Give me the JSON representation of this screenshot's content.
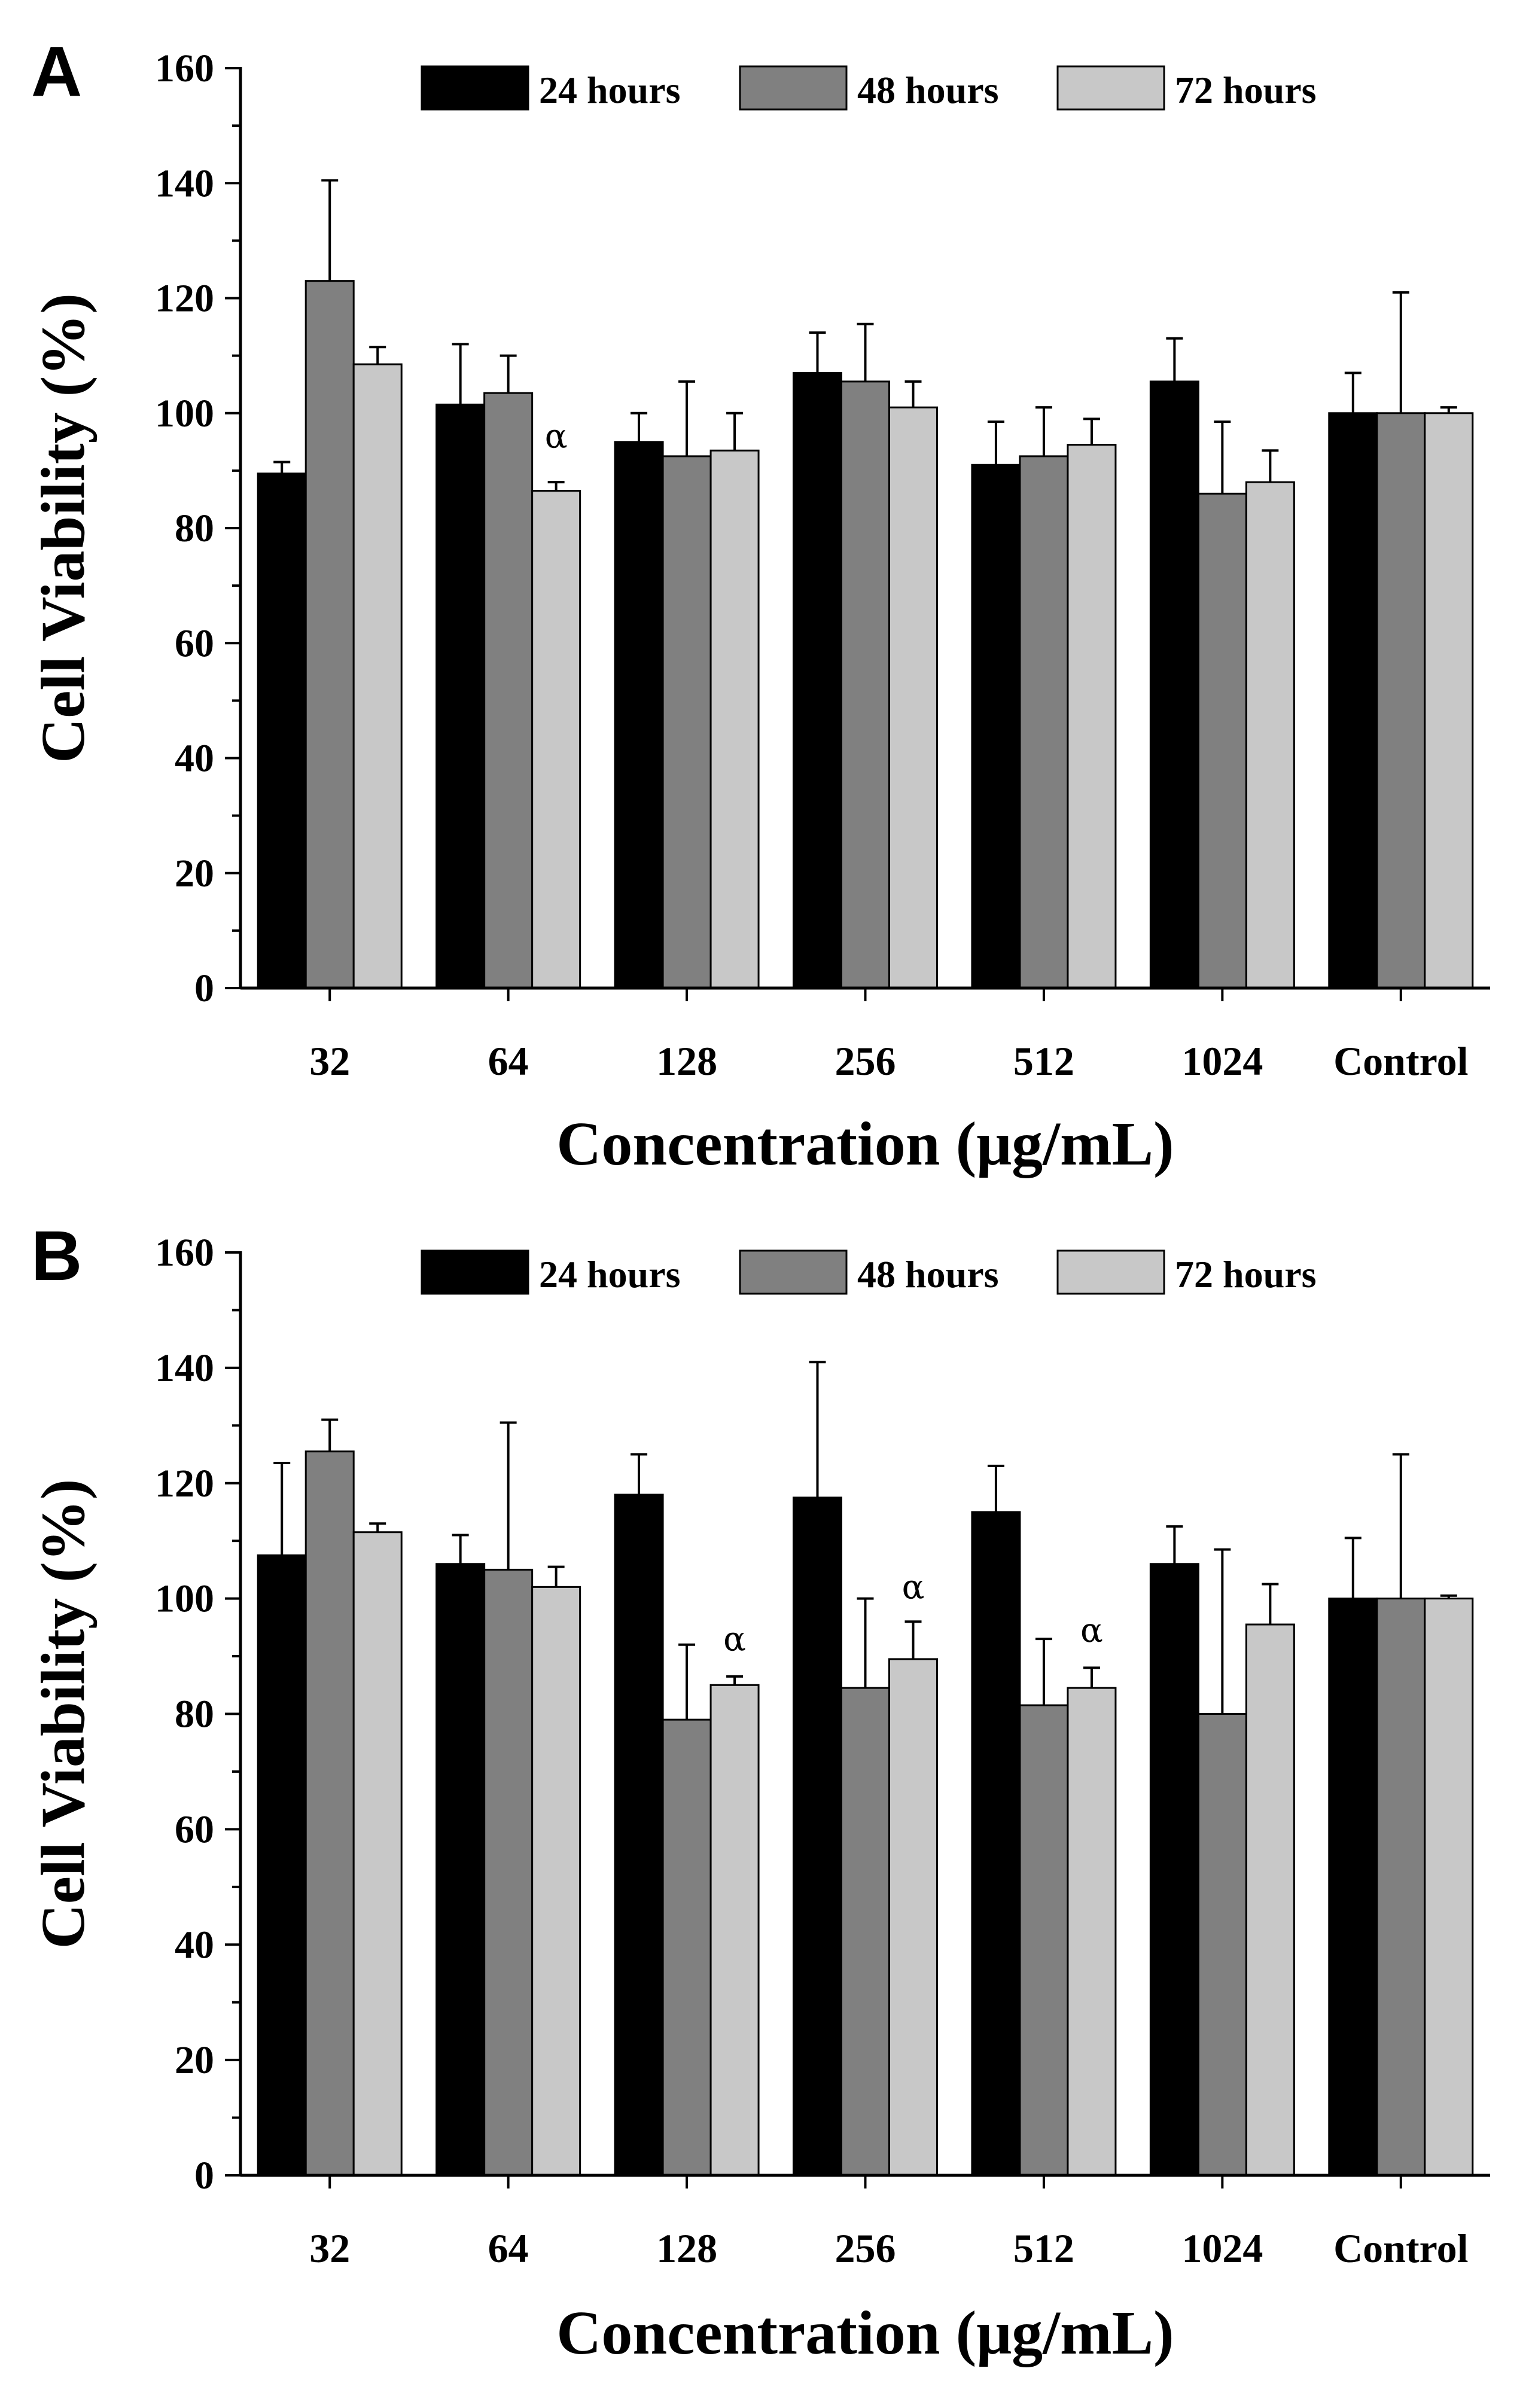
{
  "chart_data": [
    {
      "panel": "A",
      "type": "bar",
      "title": "",
      "xlabel": "Concentration (μg/mL)",
      "ylabel": "Cell Viability (%)",
      "ylim": [
        0,
        160
      ],
      "yticks": [
        "0",
        "20",
        "40",
        "60",
        "80",
        "100",
        "120",
        "140",
        "160"
      ],
      "categories": [
        "32",
        "64",
        "128",
        "256",
        "512",
        "1024",
        "Control"
      ],
      "legend_position": "top-right",
      "series": [
        {
          "name": "24 hours",
          "color": "#000000",
          "values": [
            89.5,
            101.5,
            95,
            107,
            91,
            105.5,
            100
          ],
          "errors": [
            2,
            10.5,
            5,
            7,
            7.5,
            7.5,
            7
          ]
        },
        {
          "name": "48 hours",
          "color": "#808080",
          "values": [
            123,
            103.5,
            92.5,
            105.5,
            92.5,
            86,
            100
          ],
          "errors": [
            17.5,
            6.5,
            13,
            10,
            8.5,
            12.5,
            21
          ]
        },
        {
          "name": "72 hours",
          "color": "#c8c8c8",
          "values": [
            108.5,
            86.5,
            93.5,
            101,
            94.5,
            88,
            100
          ],
          "errors": [
            3,
            1.5,
            6.5,
            4.5,
            4.5,
            5.5,
            1
          ]
        }
      ],
      "annotations": [
        {
          "text": "α",
          "category": "64",
          "series": "72 hours",
          "y": 94
        }
      ]
    },
    {
      "panel": "B",
      "type": "bar",
      "title": "",
      "xlabel": "Concentration (μg/mL)",
      "ylabel": "Cell Viability (%)",
      "ylim": [
        0,
        160
      ],
      "yticks": [
        "0",
        "20",
        "40",
        "60",
        "80",
        "100",
        "120",
        "140",
        "160"
      ],
      "categories": [
        "32",
        "64",
        "128",
        "256",
        "512",
        "1024",
        "Control"
      ],
      "legend_position": "top-right",
      "series": [
        {
          "name": "24 hours",
          "color": "#000000",
          "values": [
            107.5,
            106,
            118,
            117.5,
            115,
            106,
            100
          ],
          "errors": [
            16,
            5,
            7,
            23.5,
            8,
            6.5,
            10.5
          ]
        },
        {
          "name": "48 hours",
          "color": "#808080",
          "values": [
            125.5,
            105,
            79,
            84.5,
            81.5,
            80,
            100
          ],
          "errors": [
            5.5,
            25.5,
            13,
            15.5,
            11.5,
            28.5,
            25
          ]
        },
        {
          "name": "72 hours",
          "color": "#c8c8c8",
          "values": [
            111.5,
            102,
            85,
            89.5,
            84.5,
            95.5,
            100
          ],
          "errors": [
            1.5,
            3.5,
            1.5,
            6.5,
            3.5,
            7,
            0.5
          ]
        }
      ],
      "annotations": [
        {
          "text": "α",
          "category": "128",
          "series": "72 hours",
          "y": 91
        },
        {
          "text": "α",
          "category": "256",
          "series": "72 hours",
          "y": 100
        },
        {
          "text": "α",
          "category": "512",
          "series": "72 hours",
          "y": 92.5
        }
      ]
    }
  ]
}
